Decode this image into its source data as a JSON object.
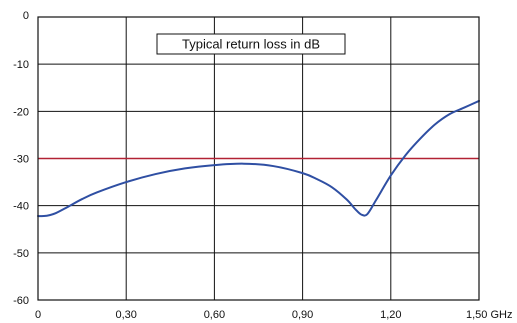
{
  "chart_data": {
    "type": "line",
    "title": "",
    "xlabel": "",
    "ylabel": "",
    "x_unit": "GHz",
    "xlim": [
      0,
      1.5
    ],
    "ylim": [
      -60,
      0
    ],
    "x_ticks": [
      0,
      0.3,
      0.6,
      0.9,
      1.2,
      1.5
    ],
    "x_tick_labels": [
      "0",
      "0,30",
      "0,60",
      "0,90",
      "1,20",
      "1,50 GHz"
    ],
    "y_ticks": [
      0,
      -10,
      -20,
      -30,
      -40,
      -50,
      -60
    ],
    "y_tick_labels": [
      "0",
      "-10",
      "-20",
      "-30",
      "-40",
      "-50",
      "-60"
    ],
    "grid": true,
    "annotation": "Typical return loss in dB",
    "reference_line": {
      "y": -30,
      "color": "#b22234"
    },
    "series": [
      {
        "color": "#2f4fa3",
        "x": [
          0,
          0.02,
          0.04,
          0.06,
          0.1,
          0.15,
          0.2,
          0.3,
          0.4,
          0.5,
          0.6,
          0.7,
          0.8,
          0.9,
          0.95,
          1.0,
          1.05,
          1.08,
          1.1,
          1.12,
          1.15,
          1.2,
          1.25,
          1.3,
          1.35,
          1.4,
          1.45,
          1.5
        ],
        "y": [
          -42.2,
          -42.2,
          -42.0,
          -41.6,
          -40.3,
          -38.6,
          -37.2,
          -35.0,
          -33.3,
          -32.1,
          -31.4,
          -31.1,
          -31.6,
          -33.1,
          -34.4,
          -36.1,
          -38.7,
          -40.8,
          -41.9,
          -41.8,
          -38.8,
          -33.6,
          -29.3,
          -25.8,
          -22.8,
          -20.6,
          -19.2,
          -17.8
        ]
      }
    ]
  }
}
